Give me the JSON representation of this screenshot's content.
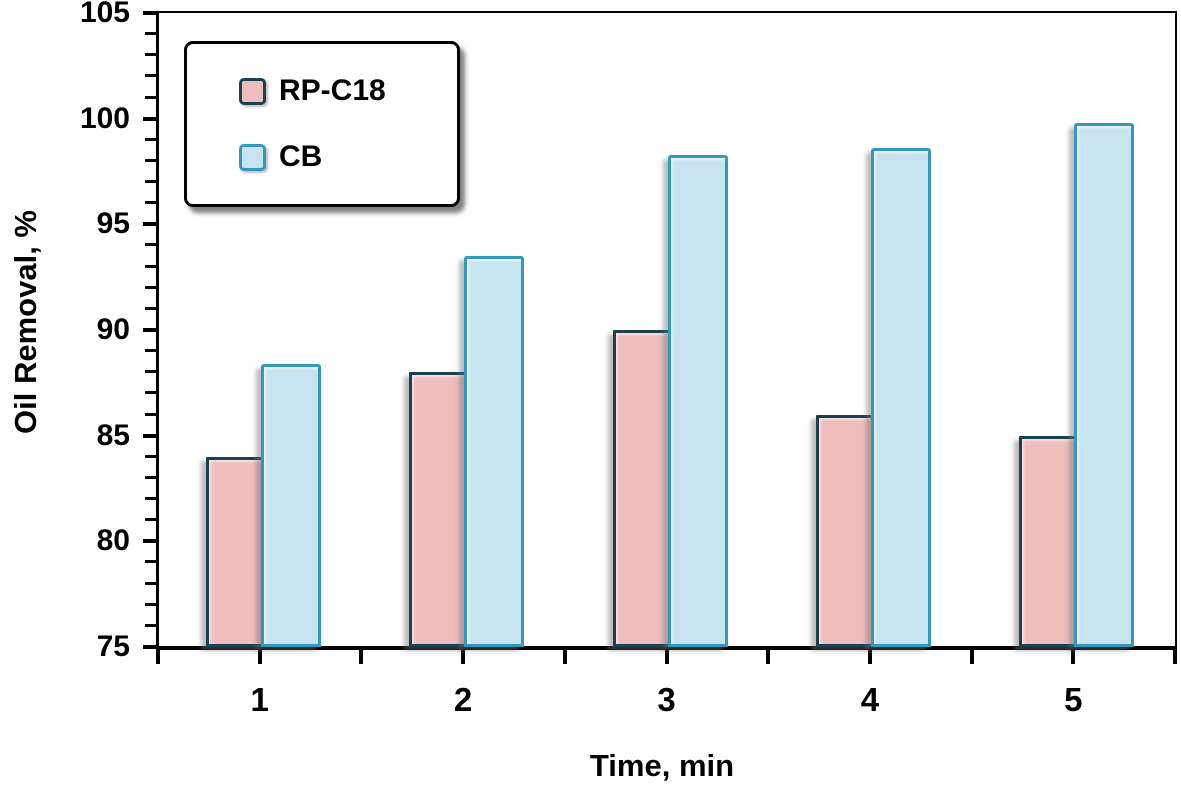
{
  "chart_data": {
    "type": "bar",
    "title": "",
    "xlabel": "Time, min",
    "ylabel": "Oil Removal, %",
    "categories": [
      "1",
      "2",
      "3",
      "4",
      "5"
    ],
    "series": [
      {
        "name": "RP-C18",
        "values": [
          84,
          88,
          90,
          86,
          85
        ],
        "fill_color": "#F0BDBD",
        "border_color": "#1B4050"
      },
      {
        "name": "CB",
        "values": [
          88.4,
          93.5,
          98.3,
          98.6,
          99.8
        ],
        "fill_color": "#C7E3EF",
        "border_color": "#3398BC"
      }
    ],
    "ylim": [
      75,
      105
    ],
    "ytick_step": 5,
    "yminor_step": 1,
    "y_tick_labels": [
      "75",
      "80",
      "85",
      "90",
      "95",
      "100",
      "105"
    ],
    "legend_position": "top-left",
    "grid": false,
    "axis_color": "#000000",
    "background_color": "#FFFFFF",
    "text_color": "#000000"
  }
}
